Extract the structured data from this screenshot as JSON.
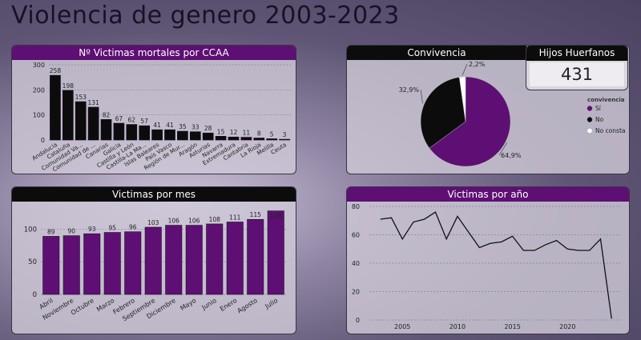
{
  "title": "Violencia de genero 2003-2023",
  "panels": {
    "ccaa": "Nº Victimas mortales por CCAA",
    "mes": "Victimas por mes",
    "convivencia": "Convivencia",
    "anio": "Victimas por año"
  },
  "kpi": {
    "label": "Hijos Huerfanos",
    "value": "431"
  },
  "colors": {
    "purple": "#5e0f73",
    "black": "#0c0c0c",
    "white": "#ffffff"
  },
  "chart_data": [
    {
      "type": "bar",
      "title": "Nº Victimas mortales por CCAA",
      "categories": [
        "Andalucía",
        "Cataluña",
        "Comunidad Va...",
        "Comunidad de ...",
        "Canarias",
        "Galicia",
        "Castilla y León",
        "Castilla-La Ma...",
        "Islas Baleares",
        "País Vasco",
        "Región de Mur...",
        "Aragón",
        "Asturias",
        "Navarra",
        "Extremadura",
        "Cantabria",
        "La Rioja",
        "Melilla",
        "Ceuta"
      ],
      "values": [
        258,
        198,
        153,
        131,
        82,
        67,
        62,
        57,
        41,
        41,
        35,
        33,
        28,
        15,
        12,
        11,
        8,
        5,
        3
      ],
      "yticks": [
        0,
        100,
        200,
        300
      ],
      "ylim": [
        0,
        300
      ],
      "grid": true
    },
    {
      "type": "pie",
      "title": "Convivencia",
      "legend_title": "convivencia",
      "legend_position": "right",
      "slices": [
        {
          "label": "Sí",
          "value": 64.9,
          "text": "64,9%",
          "color": "#5e0f73"
        },
        {
          "label": "No",
          "value": 32.9,
          "text": "32,9%",
          "color": "#0c0c0c"
        },
        {
          "label": "No consta",
          "value": 2.2,
          "text": "2,2%",
          "color": "#ffffff"
        }
      ]
    },
    {
      "type": "bar",
      "title": "Victimas por mes",
      "categories": [
        "Abril",
        "Noviembre",
        "Octubre",
        "Marzo",
        "Febrero",
        "Septiembre",
        "Diciembre",
        "Mayo",
        "Junio",
        "Enero",
        "Agosto",
        "Julio"
      ],
      "values": [
        89,
        90,
        93,
        95,
        96,
        103,
        106,
        106,
        108,
        111,
        115,
        128
      ],
      "yticks": [
        0,
        50,
        100
      ],
      "ylim": [
        0,
        130
      ],
      "grid": true
    },
    {
      "type": "line",
      "title": "Victimas por año",
      "x": [
        2003,
        2004,
        2005,
        2006,
        2007,
        2008,
        2009,
        2010,
        2011,
        2012,
        2013,
        2014,
        2015,
        2016,
        2017,
        2018,
        2019,
        2020,
        2021,
        2022,
        2023,
        2024
      ],
      "values": [
        71,
        72,
        57,
        69,
        71,
        76,
        57,
        73,
        62,
        51,
        54,
        55,
        59,
        49,
        49,
        53,
        56,
        50,
        49,
        49,
        57,
        1
      ],
      "xticks": [
        2005,
        2010,
        2015,
        2020
      ],
      "yticks": [
        0,
        20,
        40,
        60,
        80
      ],
      "ylim": [
        0,
        80
      ],
      "grid": true
    }
  ]
}
